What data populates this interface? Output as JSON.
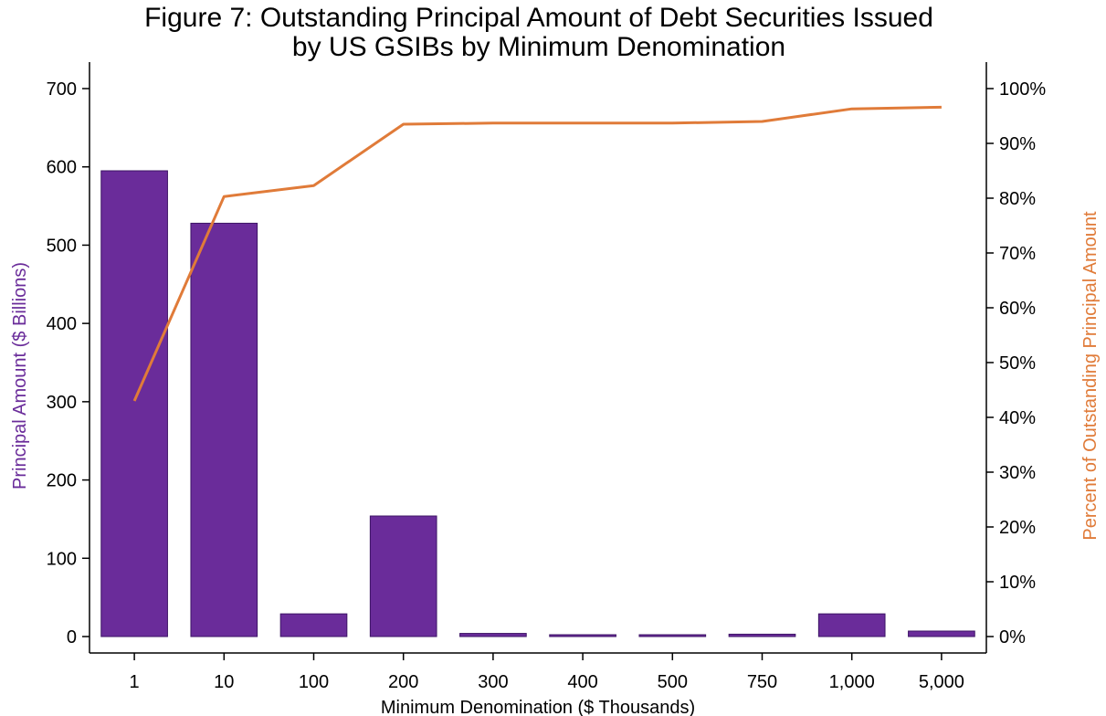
{
  "chart_data": {
    "type": "bar",
    "title_line1": "Figure 7: Outstanding Principal Amount of Debt Securities Issued",
    "title_line2": "by US GSIBs by Minimum Denomination",
    "xlabel": "Minimum Denomination ($ Thousands)",
    "ylabel_left": "Principal Amount ($ Billions)",
    "ylabel_right": "Percent of Outstanding Principal Amount",
    "categories": [
      "1",
      "10",
      "100",
      "200",
      "300",
      "400",
      "500",
      "750",
      "1,000",
      "5,000"
    ],
    "series": [
      {
        "type": "bar",
        "axis": "left",
        "values": [
          595,
          528,
          29,
          154,
          4,
          2,
          2,
          3,
          29,
          7
        ]
      },
      {
        "type": "line",
        "axis": "right",
        "values": [
          43,
          80.3,
          82.3,
          93.5,
          93.7,
          93.7,
          93.7,
          94.0,
          96.3,
          96.6
        ]
      }
    ],
    "ylim_left": [
      0,
      700
    ],
    "yticks_left": [
      0,
      100,
      200,
      300,
      400,
      500,
      600,
      700
    ],
    "ylim_right": [
      0,
      100
    ],
    "yticks_right": [
      "0%",
      "10%",
      "20%",
      "30%",
      "40%",
      "50%",
      "60%",
      "70%",
      "80%",
      "90%",
      "100%"
    ],
    "grid": false,
    "colors": {
      "bar_fill": "#6a2c9a",
      "bar_stroke": "#3d1466",
      "line": "#e07b39",
      "left_label": "#6a2c9a",
      "right_label": "#e07b39"
    }
  }
}
